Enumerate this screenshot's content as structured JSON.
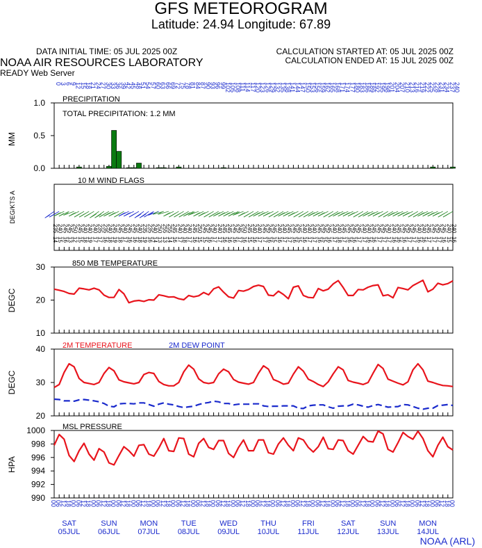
{
  "header": {
    "title": "GFS METEOROGRAM",
    "subtitle": "Latitude: 24.94 Longitude:  67.89",
    "data_initial_time": "DATA INITIAL TIME: 05 JUL 2025 00Z",
    "calc_started": "CALCULATION STARTED AT: 05 JUL 2025 00Z",
    "calc_ended": "CALCULATION ENDED AT: 15 JUL 2025 00Z",
    "lab": "NOAA AIR RESOURCES LABORATORY",
    "server": "READY Web Server",
    "footer": "NOAA (ARL)"
  },
  "colors": {
    "red": "#e8141c",
    "blue": "#1a2acc",
    "green": "#0a7a10",
    "wind": "#2e8b2e"
  },
  "chart_data": [
    {
      "type": "bar",
      "name": "precipitation",
      "title": "PRECIPITATION",
      "annotation": "TOTAL PRECIPITATION:   1.2 MM",
      "ylabel": "MM",
      "ylim": [
        0,
        1
      ],
      "yticks": [
        "0.0",
        "0.5",
        "1.0"
      ],
      "top_axis_ticks": [
        "0",
        "3",
        "6",
        "9",
        "12",
        "15",
        "18",
        "21",
        "24",
        "27",
        "30",
        "33",
        "36",
        "39",
        "42",
        "45",
        "48",
        "51",
        "54",
        "57",
        "60",
        "63",
        "66",
        "69",
        "72",
        "75",
        "78",
        "81",
        "84",
        "87",
        "90",
        "93",
        "96",
        "99",
        "102",
        "105",
        "108",
        "111",
        "114",
        "117",
        "120",
        "123",
        "126",
        "129",
        "132",
        "135",
        "138",
        "141",
        "144",
        "147",
        "150",
        "153",
        "156",
        "159",
        "162",
        "165",
        "168",
        "171",
        "174",
        "177",
        "180",
        "183",
        "186",
        "189",
        "192",
        "195",
        "198",
        "201",
        "204",
        "207",
        "210",
        "213",
        "216",
        "219",
        "222",
        "225",
        "228",
        "231",
        "234",
        "237",
        "240"
      ],
      "x": [
        15,
        33,
        36,
        39,
        45,
        48,
        51,
        63,
        66,
        75,
        102,
        228,
        240
      ],
      "values": [
        0.02,
        0.03,
        0.58,
        0.26,
        0.01,
        0.01,
        0.08,
        0.01,
        0.01,
        0.02,
        0.01,
        0.02,
        0.02
      ]
    },
    {
      "type": "wind_flags",
      "name": "wind",
      "title": "10 M  WIND FLAGS",
      "ylabel": "DEG/KTS  A",
      "x": [
        0,
        3,
        6,
        9,
        12,
        15,
        18,
        21,
        24,
        27,
        30,
        33,
        36,
        39,
        42,
        45,
        48,
        51,
        54,
        57,
        60,
        63,
        66,
        69,
        72,
        75,
        78,
        81,
        84,
        87,
        90,
        93,
        96,
        99,
        102,
        105,
        108,
        111,
        114,
        117,
        120,
        123,
        126,
        129,
        132,
        135,
        138,
        141,
        144,
        147,
        150,
        153,
        156,
        159,
        162,
        165,
        168,
        171,
        174,
        177,
        180,
        183,
        186,
        189,
        192,
        195,
        198,
        201,
        204,
        207,
        210,
        213,
        216,
        219,
        222,
        225,
        228,
        231,
        234,
        237,
        240
      ],
      "direction_labels": [
        "235",
        "240",
        "245",
        "245",
        "250",
        "245",
        "240",
        "240",
        "240",
        "235",
        "235",
        "240",
        "245",
        "245",
        "240",
        "245",
        "245",
        "240",
        "235",
        "235",
        "240",
        "250",
        "255",
        "255",
        "245",
        "240",
        "240",
        "240",
        "245",
        "250",
        "245",
        "245",
        "240",
        "240",
        "245",
        "245",
        "245",
        "245",
        "250",
        "245",
        "240",
        "240",
        "245",
        "245",
        "245",
        "240",
        "240",
        "245",
        "245",
        "245",
        "240",
        "240",
        "240",
        "245",
        "245",
        "245",
        "240",
        "240",
        "245",
        "245",
        "245",
        "245",
        "240",
        "240",
        "245",
        "245",
        "245",
        "240",
        "240",
        "245",
        "245",
        "245",
        "245",
        "240",
        "240",
        "245",
        "245",
        "245",
        "245",
        "240",
        "240"
      ],
      "speed_labels": [
        "14",
        "15",
        "16",
        "13",
        "12",
        "15",
        "18",
        "19",
        "17",
        "17",
        "16",
        "18",
        "19",
        "18",
        "17",
        "16",
        "16",
        "18",
        "19",
        "16",
        "14",
        "13",
        "13",
        "14",
        "16",
        "17",
        "18",
        "17",
        "16",
        "15",
        "15",
        "16",
        "17",
        "17",
        "16",
        "16",
        "16",
        "17",
        "16",
        "15",
        "16",
        "17",
        "17",
        "16",
        "15",
        "16",
        "17",
        "17",
        "16",
        "15",
        "16",
        "17",
        "17",
        "16",
        "15",
        "16",
        "17",
        "18",
        "17",
        "16",
        "16",
        "17",
        "17",
        "16",
        "16",
        "17",
        "17",
        "17",
        "16",
        "16",
        "16",
        "17",
        "17",
        "16",
        "16",
        "17",
        "17",
        "17",
        "16",
        "15",
        "16"
      ]
    },
    {
      "type": "line",
      "name": "temp850",
      "title": "850 MB  TEMPERATURE",
      "ylabel": "DEGC",
      "ylim": [
        10,
        30
      ],
      "yticks": [
        "10",
        "20",
        "30"
      ],
      "x": [
        0,
        3,
        6,
        9,
        12,
        15,
        18,
        21,
        24,
        27,
        30,
        33,
        36,
        39,
        42,
        45,
        48,
        51,
        54,
        57,
        60,
        63,
        66,
        69,
        72,
        75,
        78,
        81,
        84,
        87,
        90,
        93,
        96,
        99,
        102,
        105,
        108,
        111,
        114,
        117,
        120,
        123,
        126,
        129,
        132,
        135,
        138,
        141,
        144,
        147,
        150,
        153,
        156,
        159,
        162,
        165,
        168,
        171,
        174,
        177,
        180,
        183,
        186,
        189,
        192,
        195,
        198,
        201,
        204,
        207,
        210,
        213,
        216,
        219,
        222,
        225,
        228,
        231,
        234,
        237,
        240
      ],
      "series": [
        {
          "name": "850 MB  TEMPERATURE",
          "color": "#e8141c",
          "values": [
            23.3,
            23.0,
            22.6,
            22.0,
            21.8,
            23.6,
            23.4,
            23.1,
            23.6,
            23.1,
            21.5,
            20.8,
            20.8,
            23.2,
            21.9,
            19.2,
            19.7,
            19.9,
            19.6,
            20.1,
            20.0,
            21.6,
            21.3,
            20.9,
            21.0,
            20.4,
            20.1,
            21.4,
            21.0,
            21.3,
            22.3,
            21.6,
            23.4,
            24.0,
            22.4,
            21.0,
            20.6,
            22.9,
            22.7,
            23.2,
            24.1,
            24.5,
            24.1,
            21.5,
            21.3,
            22.7,
            21.7,
            20.4,
            23.9,
            24.3,
            21.4,
            20.8,
            20.7,
            23.5,
            22.8,
            23.3,
            24.9,
            25.9,
            23.8,
            21.4,
            21.4,
            23.2,
            23.1,
            23.9,
            24.4,
            24.6,
            21.3,
            21.6,
            20.7,
            23.8,
            23.5,
            23.1,
            24.4,
            25.2,
            26.0,
            22.5,
            23.3,
            25.1,
            24.6,
            25.0,
            25.8
          ]
        }
      ]
    },
    {
      "type": "line",
      "name": "temp2m",
      "title": "",
      "ylabel": "DEGC",
      "ylim": [
        20,
        40
      ],
      "yticks": [
        "20",
        "30",
        "40"
      ],
      "x": [
        0,
        3,
        6,
        9,
        12,
        15,
        18,
        21,
        24,
        27,
        30,
        33,
        36,
        39,
        42,
        45,
        48,
        51,
        54,
        57,
        60,
        63,
        66,
        69,
        72,
        75,
        78,
        81,
        84,
        87,
        90,
        93,
        96,
        99,
        102,
        105,
        108,
        111,
        114,
        117,
        120,
        123,
        126,
        129,
        132,
        135,
        138,
        141,
        144,
        147,
        150,
        153,
        156,
        159,
        162,
        165,
        168,
        171,
        174,
        177,
        180,
        183,
        186,
        189,
        192,
        195,
        198,
        201,
        204,
        207,
        210,
        213,
        216,
        219,
        222,
        225,
        228,
        231,
        234,
        237,
        240
      ],
      "series": [
        {
          "name": "2M TEMPERATURE",
          "color": "#e8141c",
          "dash": false,
          "values": [
            28.5,
            29.4,
            33.0,
            35.6,
            34.7,
            31.2,
            30.0,
            29.7,
            29.4,
            30.0,
            32.7,
            34.5,
            33.5,
            30.8,
            30.2,
            29.9,
            29.6,
            30.0,
            32.4,
            33.0,
            32.7,
            30.3,
            29.4,
            29.0,
            29.0,
            30.0,
            33.2,
            35.2,
            34.0,
            31.1,
            30.0,
            29.7,
            30.0,
            32.6,
            34.0,
            33.2,
            30.9,
            30.1,
            29.8,
            29.5,
            30.0,
            32.8,
            35.0,
            34.0,
            30.9,
            30.3,
            29.5,
            29.8,
            32.5,
            34.7,
            33.4,
            31.0,
            30.3,
            29.4,
            28.8,
            30.2,
            32.6,
            34.7,
            33.8,
            30.6,
            30.1,
            29.8,
            29.4,
            30.0,
            32.8,
            35.4,
            34.2,
            31.0,
            30.4,
            29.8,
            29.3,
            30.2,
            33.8,
            35.6,
            33.8,
            30.4,
            30.0,
            29.5,
            29.1,
            29.0,
            28.8
          ]
        },
        {
          "name": "2M  DEW POINT",
          "color": "#1a2acc",
          "dash": true,
          "values": [
            25.0,
            24.9,
            24.5,
            24.5,
            24.4,
            24.8,
            24.9,
            24.7,
            24.5,
            24.2,
            23.7,
            22.9,
            22.7,
            23.6,
            23.7,
            23.7,
            23.6,
            23.9,
            23.9,
            23.4,
            22.9,
            23.5,
            23.9,
            23.5,
            23.3,
            22.8,
            22.5,
            22.7,
            22.9,
            23.4,
            23.8,
            24.0,
            24.4,
            24.2,
            23.7,
            23.7,
            23.3,
            23.5,
            23.5,
            23.5,
            23.6,
            23.6,
            23.0,
            22.8,
            22.9,
            22.9,
            23.0,
            23.0,
            23.0,
            22.3,
            22.2,
            23.0,
            23.2,
            23.3,
            23.3,
            22.7,
            22.3,
            22.9,
            23.0,
            23.0,
            23.5,
            23.3,
            22.9,
            22.6,
            23.1,
            23.4,
            23.0,
            22.6,
            22.7,
            22.8,
            23.4,
            23.3,
            22.8,
            22.3,
            22.0,
            22.3,
            22.3,
            23.1,
            23.2,
            23.4,
            23.1
          ]
        }
      ]
    },
    {
      "type": "line",
      "name": "mslp",
      "title": "MSL PRESSURE",
      "ylabel": "HPA",
      "ylim": [
        990,
        1000
      ],
      "yticks": [
        "990",
        "992",
        "994",
        "996",
        "998",
        "1000"
      ],
      "x": [
        0,
        3,
        6,
        9,
        12,
        15,
        18,
        21,
        24,
        27,
        30,
        33,
        36,
        39,
        42,
        45,
        48,
        51,
        54,
        57,
        60,
        63,
        66,
        69,
        72,
        75,
        78,
        81,
        84,
        87,
        90,
        93,
        96,
        99,
        102,
        105,
        108,
        111,
        114,
        117,
        120,
        123,
        126,
        129,
        132,
        135,
        138,
        141,
        144,
        147,
        150,
        153,
        156,
        159,
        162,
        165,
        168,
        171,
        174,
        177,
        180,
        183,
        186,
        189,
        192,
        195,
        198,
        201,
        204,
        207,
        210,
        213,
        216,
        219,
        222,
        225,
        228,
        231,
        234,
        237,
        240
      ],
      "series": [
        {
          "name": "MSL PRESSURE",
          "color": "#e8141c",
          "values": [
            997.8,
            999.4,
            998.7,
            996.3,
            995.4,
            997.0,
            998.1,
            996.5,
            995.6,
            997.3,
            996.8,
            995.2,
            994.9,
            996.3,
            997.6,
            997.0,
            996.2,
            997.8,
            997.9,
            996.5,
            996.2,
            997.4,
            998.8,
            997.0,
            996.9,
            998.9,
            998.8,
            996.5,
            996.1,
            998.1,
            998.8,
            997.5,
            997.2,
            998.5,
            998.5,
            996.6,
            996.0,
            997.5,
            998.6,
            997.0,
            997.0,
            998.6,
            998.6,
            996.7,
            996.5,
            998.0,
            998.9,
            997.8,
            997.0,
            998.9,
            998.6,
            997.5,
            996.8,
            997.6,
            999.0,
            997.3,
            997.2,
            998.6,
            998.5,
            997.0,
            996.5,
            997.8,
            999.1,
            998.4,
            998.3,
            999.9,
            999.5,
            997.2,
            996.8,
            998.2,
            999.7,
            999.1,
            998.7,
            999.9,
            998.8,
            997.0,
            996.1,
            997.8,
            999.0,
            997.6,
            997.1
          ]
        }
      ]
    }
  ],
  "time_axis": {
    "hour_labels": [
      "00",
      "06",
      "12",
      "18",
      "00",
      "06",
      "12",
      "18",
      "00",
      "06",
      "12",
      "18",
      "00",
      "06",
      "12",
      "18",
      "00",
      "06",
      "12",
      "18",
      "00",
      "06",
      "12",
      "18",
      "00",
      "06",
      "12",
      "18",
      "00",
      "06",
      "12",
      "18",
      "00",
      "06",
      "12",
      "18",
      "00",
      "06",
      "12",
      "18",
      "00",
      "06",
      "12",
      "18",
      "00",
      "06",
      "12",
      "18",
      "00",
      "06",
      "12",
      "18",
      "00",
      "06",
      "12",
      "18",
      "00",
      "06",
      "12",
      "18",
      "00",
      "06",
      "12",
      "18",
      "00",
      "06",
      "12",
      "18",
      "00",
      "06",
      "12",
      "18",
      "00",
      "06",
      "12",
      "18",
      "00",
      "06",
      "12",
      "18",
      "00"
    ],
    "days": [
      {
        "dow": "SAT",
        "date": "05JUL"
      },
      {
        "dow": "SUN",
        "date": "06JUL"
      },
      {
        "dow": "MON",
        "date": "07JUL"
      },
      {
        "dow": "TUE",
        "date": "08JUL"
      },
      {
        "dow": "WED",
        "date": "09JUL"
      },
      {
        "dow": "THU",
        "date": "10JUL"
      },
      {
        "dow": "FRI",
        "date": "11JUL"
      },
      {
        "dow": "SAT",
        "date": "12JUL"
      },
      {
        "dow": "SUN",
        "date": "13JUL"
      },
      {
        "dow": "MON",
        "date": "14JUL"
      }
    ]
  },
  "legend": {
    "temp2m": "2M TEMPERATURE",
    "dew": "2M  DEW POINT"
  }
}
